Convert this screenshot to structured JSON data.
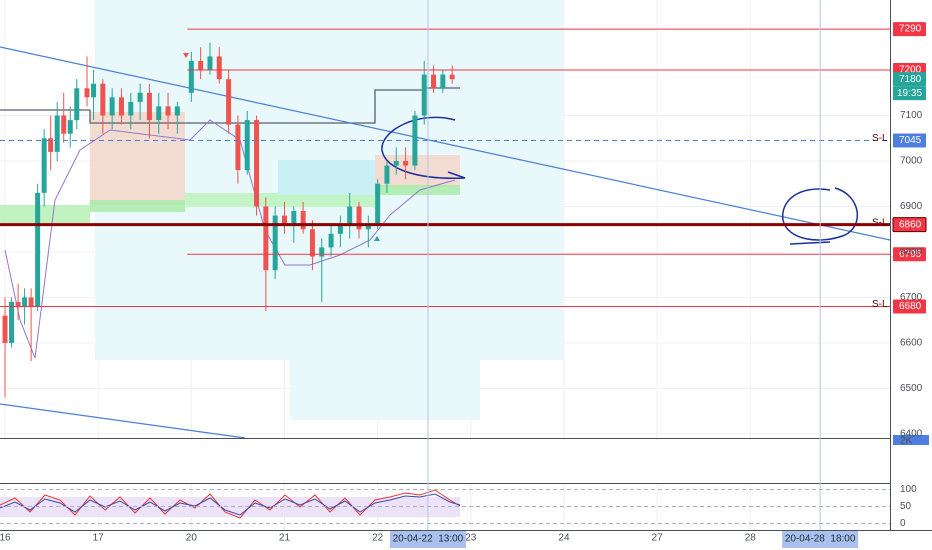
{
  "chart_data": {
    "type": "candlestick",
    "xlim": [
      -0.054,
      9.5
    ],
    "ylim": [
      6391,
      7354
    ],
    "grid": true,
    "up_color": "#26a69a",
    "down_color": "#ef5350",
    "xticks": [
      {
        "value": 0,
        "label": "16"
      },
      {
        "value": 1,
        "label": "17"
      },
      {
        "value": 2,
        "label": "20"
      },
      {
        "value": 3,
        "label": "21"
      },
      {
        "value": 4,
        "label": "22"
      },
      {
        "value": 5,
        "label": "23"
      },
      {
        "value": 6,
        "label": "24"
      },
      {
        "value": 7,
        "label": "27"
      },
      {
        "value": 8,
        "label": "28"
      }
    ],
    "yticks": [
      6400,
      6500,
      6600,
      6700,
      6800,
      6900,
      7000,
      7100
    ],
    "x": [
      0,
      0.07,
      0.14,
      0.21,
      0.28,
      0.35,
      0.42,
      0.49,
      0.56,
      0.63,
      0.7,
      0.77,
      0.88,
      0.95,
      1.05,
      1.15,
      1.25,
      1.35,
      1.45,
      1.55,
      1.65,
      1.75,
      1.85,
      2,
      2.1,
      2.2,
      2.3,
      2.4,
      2.5,
      2.6,
      2.7,
      2.8,
      2.9,
      3,
      3.1,
      3.2,
      3.3,
      3.4,
      3.5,
      3.6,
      3.7,
      3.8,
      3.9,
      4,
      4.1,
      4.2,
      4.3,
      4.4,
      4.5,
      4.6,
      4.7,
      4.8
    ],
    "open": [
      6660,
      6600,
      6690,
      6680,
      6700,
      6680,
      6930,
      7050,
      7020,
      7100,
      7060,
      7090,
      7160,
      7140,
      7170,
      7100,
      7140,
      7100,
      7130,
      7150,
      7090,
      7120,
      7100,
      7150,
      7220,
      7200,
      7230,
      7180,
      7080,
      6980,
      7090,
      6900,
      6760,
      6880,
      6860,
      6890,
      6850,
      6790,
      6810,
      6840,
      6860,
      6900,
      6850,
      6860,
      6950,
      6990,
      7000,
      6990,
      7100,
      7190,
      7160,
      7190
    ],
    "high": [
      6700,
      6700,
      6730,
      6720,
      6720,
      6950,
      7070,
      7100,
      7130,
      7150,
      7120,
      7180,
      7230,
      7200,
      7180,
      7160,
      7160,
      7150,
      7170,
      7170,
      7150,
      7150,
      7130,
      7240,
      7250,
      7260,
      7250,
      7200,
      7100,
      7110,
      7100,
      6920,
      6900,
      6910,
      6900,
      6910,
      6870,
      6830,
      6860,
      6880,
      6930,
      6910,
      6880,
      6960,
      7000,
      7030,
      7030,
      7110,
      7220,
      7210,
      7200,
      7210
    ],
    "low": [
      6480,
      6590,
      6650,
      6640,
      6560,
      6670,
      6900,
      6980,
      7000,
      7040,
      7030,
      7070,
      7120,
      7090,
      7060,
      7070,
      7080,
      7070,
      7090,
      7050,
      7060,
      7070,
      7060,
      7130,
      7180,
      7190,
      7170,
      7060,
      6950,
      6970,
      6880,
      6670,
      6740,
      6840,
      6820,
      6840,
      6760,
      6690,
      6790,
      6810,
      6830,
      6830,
      6810,
      6850,
      6930,
      6970,
      6960,
      6980,
      7080,
      7150,
      7150,
      7170
    ],
    "close": [
      6600,
      6690,
      6680,
      6700,
      6680,
      6930,
      7050,
      7020,
      7100,
      7060,
      7090,
      7160,
      7140,
      7170,
      7100,
      7140,
      7100,
      7130,
      7150,
      7090,
      7120,
      7100,
      7120,
      7220,
      7200,
      7230,
      7180,
      7080,
      6980,
      7090,
      6900,
      6760,
      6880,
      6860,
      6890,
      6850,
      6790,
      6810,
      6840,
      6860,
      6900,
      6850,
      6860,
      6950,
      6990,
      7000,
      6990,
      7100,
      7190,
      7160,
      7190,
      7180
    ],
    "levels": [
      {
        "value": 7290,
        "color": "#f23645",
        "from": 2
      },
      {
        "value": 7200,
        "color": "#f23645",
        "from": 2
      },
      {
        "value": 7180,
        "color": "#26a69a",
        "countdown": "19:35"
      },
      {
        "value": 7045,
        "color": "#4c7fe0",
        "annotation": "S-L"
      },
      {
        "value": 6860,
        "color": "#8b0000",
        "annotation": "S-L"
      },
      {
        "value": 6795,
        "color": "#f23645",
        "from": 2
      },
      {
        "value": 6680,
        "color": "#f23645",
        "annotation": "S-L"
      }
    ],
    "crosshairs": [
      {
        "value": 4.54,
        "label": "20-04-22  13:00"
      },
      {
        "value": 8.75,
        "label": "20-04-28  18:00"
      }
    ],
    "volume_label": "2K",
    "rsi_ylim": [
      -19,
      116
    ],
    "rsi_yticks": [
      0,
      50,
      100
    ]
  }
}
